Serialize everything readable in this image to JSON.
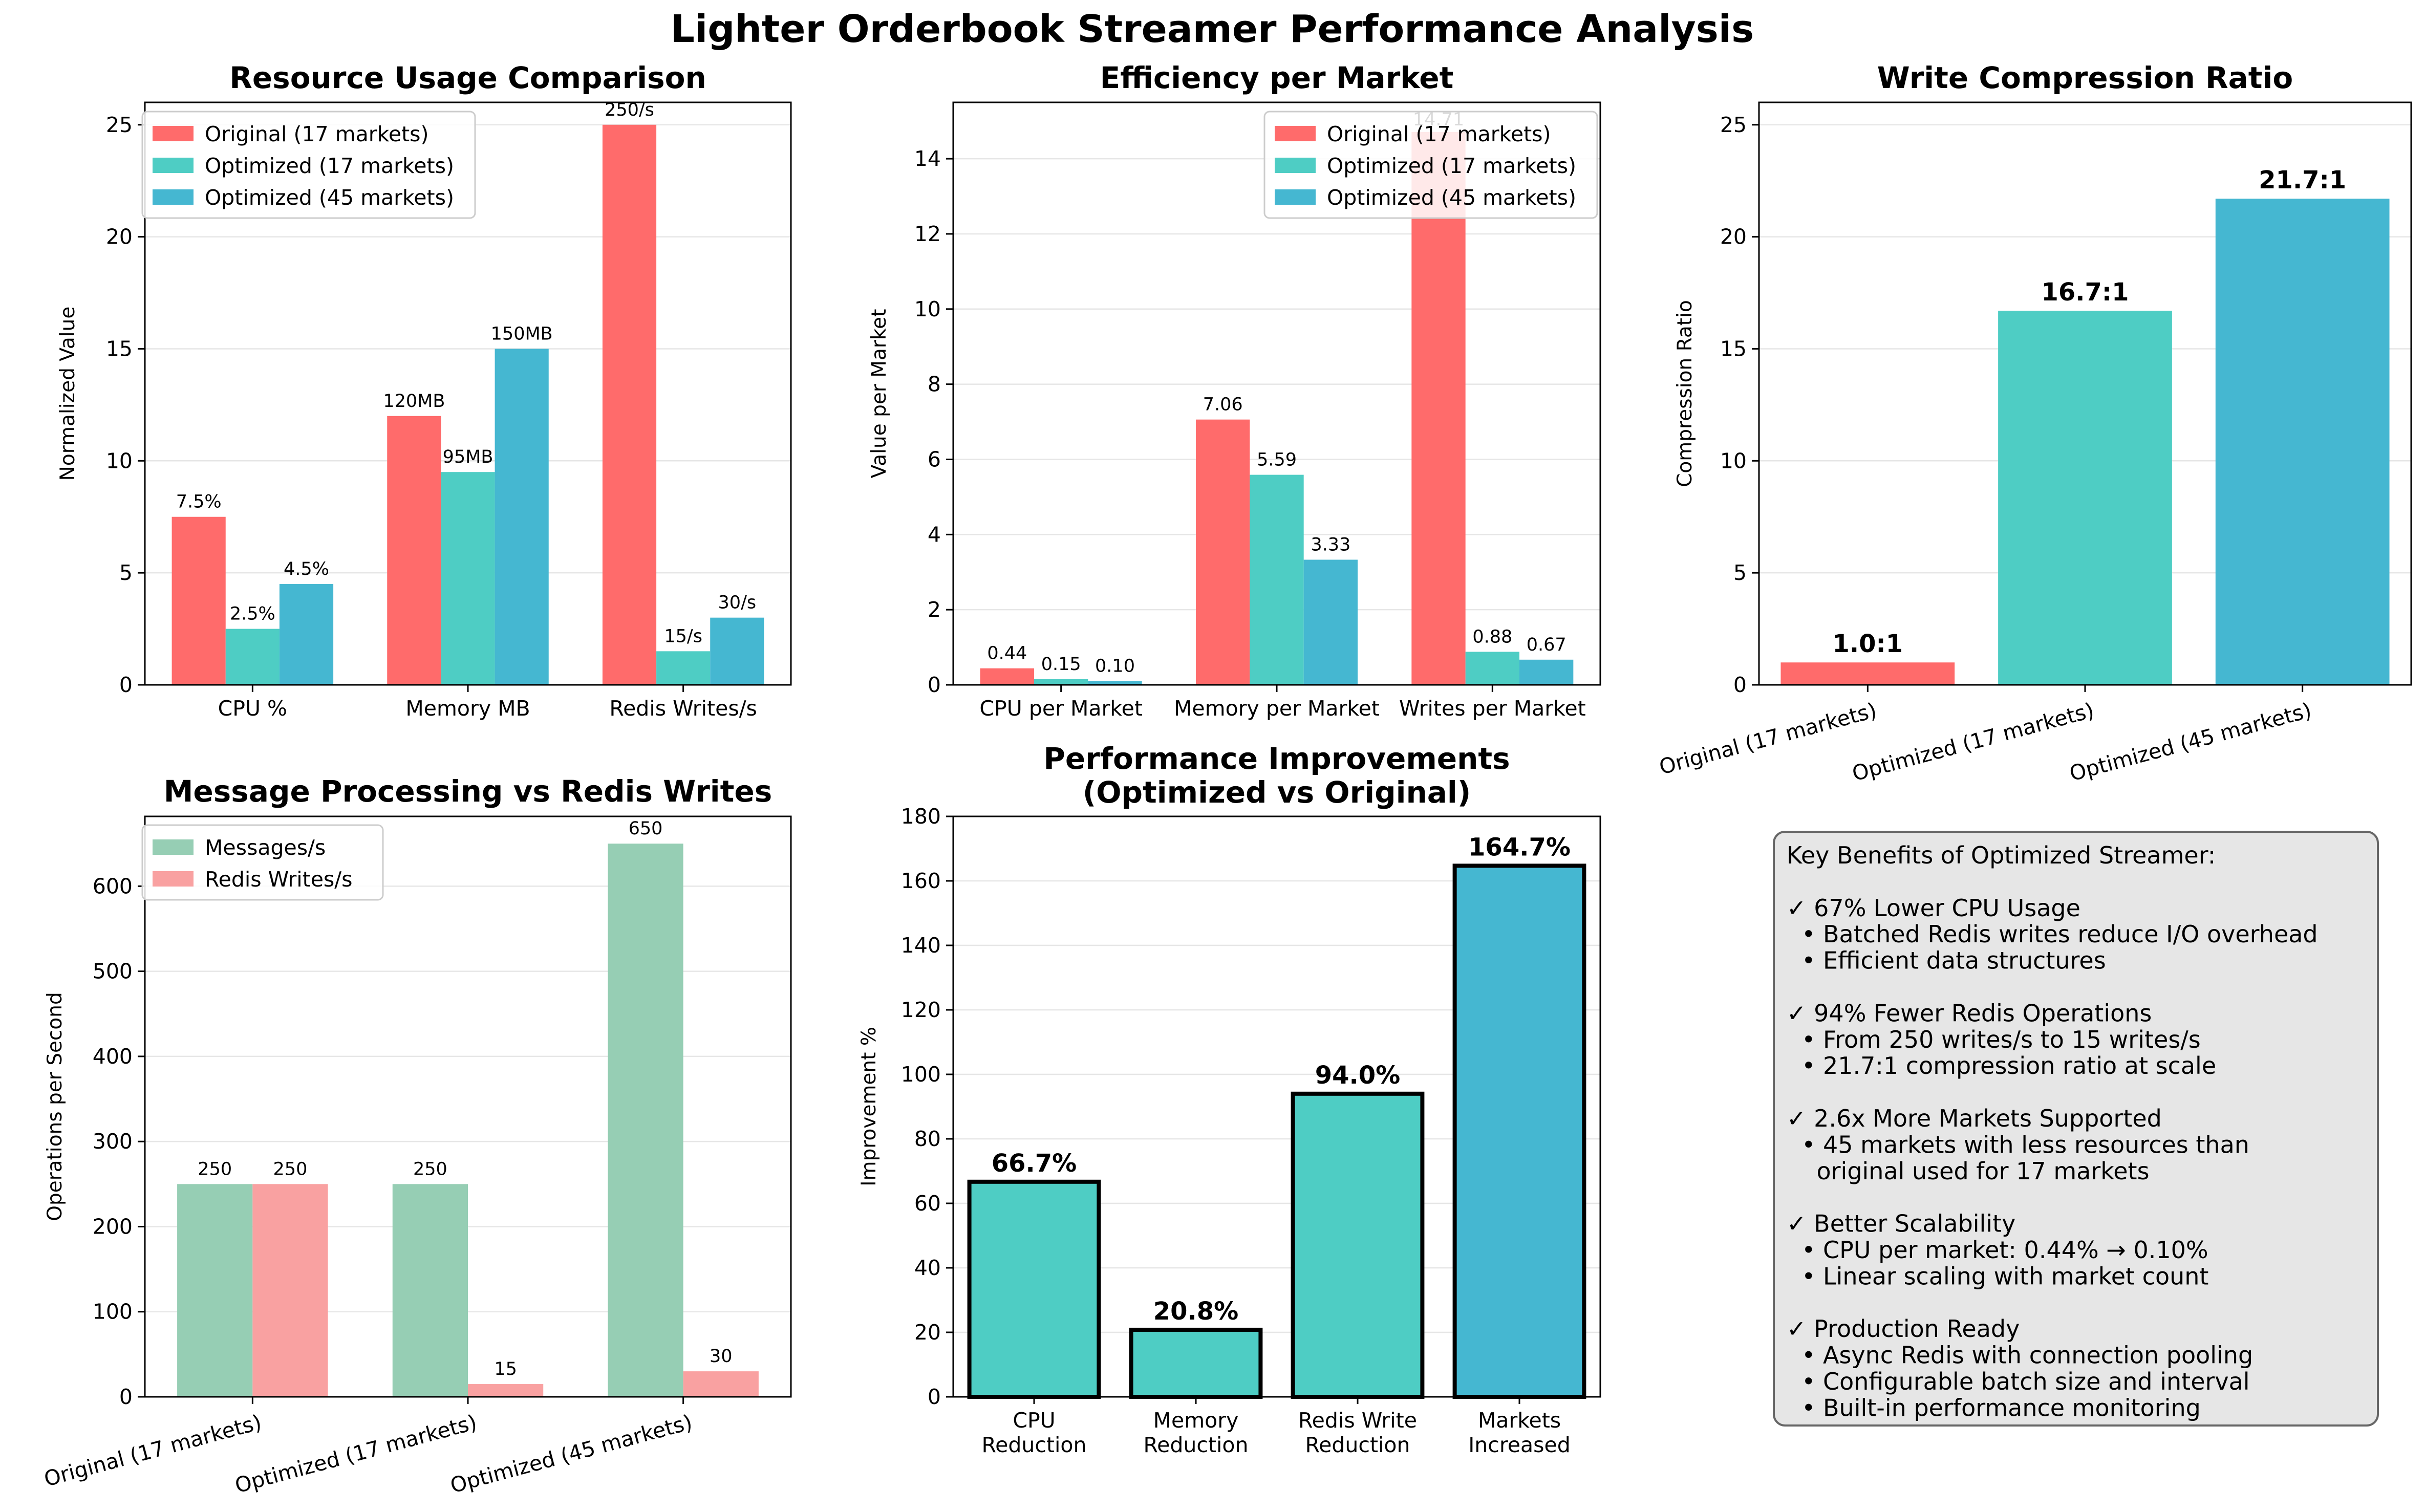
{
  "figure": {
    "title": "Lighter Orderbook Streamer Performance Analysis"
  },
  "colors": {
    "original": "#ff6b6b",
    "opt17": "#4ecdc4",
    "opt45": "#45b7d1",
    "messages": "#96ceb4",
    "writes": "#f9a1a1"
  },
  "chart_data": [
    {
      "id": "resource",
      "type": "bar",
      "title": "Resource Usage Comparison",
      "ylabel": "Normalized Value",
      "xlabel": "",
      "categories": [
        "CPU %",
        "Memory MB",
        "Redis Writes/s"
      ],
      "ylim": [
        0,
        26
      ],
      "yticks": [
        0,
        5,
        10,
        15,
        20,
        25
      ],
      "legend": "top-left",
      "series": [
        {
          "name": "Original (17 markets)",
          "color": "#ff6b6b",
          "values": [
            7.5,
            12,
            25
          ],
          "labels": [
            "7.5%",
            "120MB",
            "250/s"
          ]
        },
        {
          "name": "Optimized (17 markets)",
          "color": "#4ecdc4",
          "values": [
            2.5,
            9.5,
            1.5
          ],
          "labels": [
            "2.5%",
            "95MB",
            "15/s"
          ]
        },
        {
          "name": "Optimized (45 markets)",
          "color": "#45b7d1",
          "values": [
            4.5,
            15,
            3
          ],
          "labels": [
            "4.5%",
            "150MB",
            "30/s"
          ]
        }
      ]
    },
    {
      "id": "efficiency",
      "type": "bar",
      "title": "Efficiency per Market",
      "ylabel": "Value per Market",
      "xlabel": "",
      "categories": [
        "CPU per Market",
        "Memory per Market",
        "Writes per Market"
      ],
      "ylim": [
        0,
        15.5
      ],
      "yticks": [
        0,
        2,
        4,
        6,
        8,
        10,
        12,
        14
      ],
      "legend": "top-right",
      "series": [
        {
          "name": "Original (17 markets)",
          "color": "#ff6b6b",
          "values": [
            0.44,
            7.06,
            14.71
          ],
          "labels": [
            "0.44",
            "7.06",
            "14.71"
          ]
        },
        {
          "name": "Optimized (17 markets)",
          "color": "#4ecdc4",
          "values": [
            0.15,
            5.59,
            0.88
          ],
          "labels": [
            "0.15",
            "5.59",
            "0.88"
          ]
        },
        {
          "name": "Optimized (45 markets)",
          "color": "#45b7d1",
          "values": [
            0.1,
            3.33,
            0.67
          ],
          "labels": [
            "0.10",
            "3.33",
            "0.67"
          ]
        }
      ]
    },
    {
      "id": "compression",
      "type": "bar",
      "title": "Write Compression Ratio",
      "ylabel": "Compression Ratio",
      "xlabel": "",
      "categories": [
        "Original (17 markets)",
        "Optimized (17 markets)",
        "Optimized (45 markets)"
      ],
      "ylim": [
        0,
        26
      ],
      "yticks": [
        0,
        5,
        10,
        15,
        20,
        25
      ],
      "values": [
        1.0,
        16.7,
        21.7
      ],
      "labels": [
        "1.0:1",
        "16.7:1",
        "21.7:1"
      ],
      "colors": [
        "#ff6b6b",
        "#4ecdc4",
        "#45b7d1"
      ]
    },
    {
      "id": "messages",
      "type": "bar",
      "title": "Message Processing vs Redis Writes",
      "ylabel": "Operations per Second",
      "xlabel": "",
      "categories": [
        "Original (17 markets)",
        "Optimized (17 markets)",
        "Optimized (45 markets)"
      ],
      "ylim": [
        0,
        682
      ],
      "yticks": [
        0,
        100,
        200,
        300,
        400,
        500,
        600
      ],
      "legend": "top-left",
      "series": [
        {
          "name": "Messages/s",
          "color": "#96ceb4",
          "values": [
            250,
            250,
            650
          ],
          "labels": [
            "250",
            "250",
            "650"
          ]
        },
        {
          "name": "Redis Writes/s",
          "color": "#f9a1a1",
          "values": [
            250,
            15,
            30
          ],
          "labels": [
            "250",
            "15",
            "30"
          ]
        }
      ]
    },
    {
      "id": "improvements",
      "type": "bar",
      "title": "Performance Improvements",
      "subtitle": "(Optimized vs Original)",
      "ylabel": "Improvement %",
      "xlabel": "",
      "categories": [
        "CPU\nReduction",
        "Memory\nReduction",
        "Redis Write\nReduction",
        "Markets\nIncreased"
      ],
      "ylim": [
        0,
        180
      ],
      "yticks": [
        0,
        20,
        40,
        60,
        80,
        100,
        120,
        140,
        160,
        180
      ],
      "values": [
        66.7,
        20.8,
        94.0,
        164.7
      ],
      "labels": [
        "66.7%",
        "20.8%",
        "94.0%",
        "164.7%"
      ],
      "colors": [
        "#4ecdc4",
        "#4ecdc4",
        "#4ecdc4",
        "#45b7d1"
      ]
    }
  ],
  "benefits": {
    "lines": [
      "Key Benefits of Optimized Streamer:",
      "",
      "✓ 67% Lower CPU Usage",
      "  • Batched Redis writes reduce I/O overhead",
      "  • Efficient data structures",
      "",
      "✓ 94% Fewer Redis Operations",
      "  • From 250 writes/s to 15 writes/s",
      "  • 21.7:1 compression ratio at scale",
      "",
      "✓ 2.6x More Markets Supported",
      "  • 45 markets with less resources than",
      "    original used for 17 markets",
      "",
      "✓ Better Scalability",
      "  • CPU per market: 0.44% → 0.10%",
      "  • Linear scaling with market count",
      "",
      "✓ Production Ready",
      "  • Async Redis with connection pooling",
      "  • Configurable batch size and interval",
      "  • Built-in performance monitoring"
    ]
  }
}
